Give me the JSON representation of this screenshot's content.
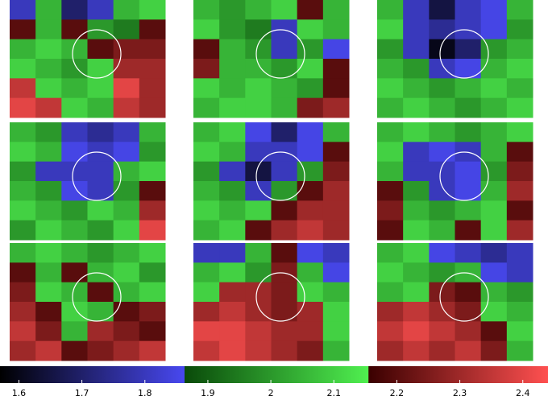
{
  "chart_data": {
    "type": "heatmap",
    "panels": [
      {
        "values": [
          [
            1.8,
            2.05,
            1.7,
            1.8,
            2.05,
            2.1
          ],
          [
            2.2,
            2.05,
            2.2,
            2.0,
            1.95,
            2.2
          ],
          [
            2.05,
            2.1,
            2.05,
            2.2,
            2.25,
            2.25
          ],
          [
            2.1,
            2.05,
            2.0,
            2.1,
            2.3,
            2.3
          ],
          [
            2.35,
            2.1,
            2.05,
            2.1,
            2.4,
            2.3
          ],
          [
            2.4,
            2.35,
            2.1,
            2.05,
            2.35,
            2.3
          ]
        ]
      },
      {
        "values": [
          [
            2.05,
            2.0,
            2.05,
            2.1,
            2.2,
            2.05
          ],
          [
            2.1,
            2.0,
            1.95,
            1.8,
            2.1,
            2.05
          ],
          [
            2.2,
            2.05,
            2.0,
            1.8,
            2.0,
            1.85
          ],
          [
            2.25,
            2.05,
            2.05,
            2.0,
            2.1,
            2.2
          ],
          [
            2.1,
            2.05,
            2.1,
            2.05,
            2.0,
            2.2
          ],
          [
            2.05,
            2.1,
            2.1,
            2.05,
            2.25,
            2.3
          ]
        ]
      },
      {
        "values": [
          [
            2.05,
            1.8,
            1.65,
            1.8,
            1.85,
            2.05
          ],
          [
            2.1,
            1.8,
            1.75,
            1.8,
            1.85,
            2.0
          ],
          [
            2.0,
            1.8,
            1.6,
            1.7,
            2.0,
            2.05
          ],
          [
            2.05,
            2.0,
            1.8,
            1.85,
            2.05,
            2.1
          ],
          [
            2.1,
            2.05,
            2.0,
            2.05,
            2.1,
            2.05
          ],
          [
            2.05,
            2.1,
            2.05,
            2.0,
            2.05,
            2.1
          ]
        ]
      },
      {
        "values": [
          [
            2.05,
            2.0,
            1.8,
            1.75,
            1.8,
            2.05
          ],
          [
            2.1,
            2.05,
            1.85,
            1.8,
            1.85,
            2.0
          ],
          [
            2.0,
            1.8,
            1.8,
            1.8,
            2.05,
            2.1
          ],
          [
            2.05,
            2.0,
            1.85,
            1.8,
            2.0,
            2.2
          ],
          [
            2.1,
            2.05,
            2.0,
            2.1,
            2.05,
            2.3
          ],
          [
            2.0,
            2.1,
            2.05,
            2.0,
            2.1,
            2.4
          ]
        ]
      },
      {
        "values": [
          [
            2.05,
            2.1,
            1.85,
            1.7,
            1.85,
            2.05
          ],
          [
            2.1,
            2.05,
            1.8,
            1.8,
            1.85,
            2.2
          ],
          [
            2.0,
            1.8,
            1.65,
            1.8,
            2.0,
            2.25
          ],
          [
            2.05,
            2.0,
            1.8,
            2.0,
            2.2,
            2.3
          ],
          [
            2.1,
            2.05,
            2.1,
            2.2,
            2.3,
            2.3
          ],
          [
            2.05,
            2.1,
            2.2,
            2.3,
            2.35,
            2.3
          ]
        ]
      },
      {
        "values": [
          [
            2.05,
            2.1,
            2.05,
            2.0,
            2.05,
            2.1
          ],
          [
            2.1,
            1.8,
            1.85,
            1.8,
            2.05,
            2.2
          ],
          [
            2.05,
            1.8,
            1.8,
            1.85,
            2.0,
            2.25
          ],
          [
            2.2,
            2.0,
            1.8,
            1.85,
            2.05,
            2.3
          ],
          [
            2.25,
            2.05,
            2.0,
            2.05,
            2.1,
            2.2
          ],
          [
            2.2,
            2.1,
            2.05,
            2.2,
            2.1,
            2.3
          ]
        ]
      },
      {
        "values": [
          [
            2.05,
            2.1,
            2.05,
            2.0,
            2.05,
            2.1
          ],
          [
            2.2,
            2.05,
            2.2,
            2.05,
            2.1,
            2.0
          ],
          [
            2.25,
            2.1,
            2.05,
            2.2,
            2.05,
            2.1
          ],
          [
            2.3,
            2.2,
            2.1,
            2.05,
            2.2,
            2.25
          ],
          [
            2.35,
            2.25,
            2.05,
            2.3,
            2.25,
            2.2
          ],
          [
            2.3,
            2.35,
            2.2,
            2.25,
            2.3,
            2.35
          ]
        ]
      },
      {
        "values": [
          [
            1.8,
            1.8,
            2.05,
            2.2,
            1.85,
            1.8
          ],
          [
            2.05,
            2.1,
            2.0,
            2.25,
            2.05,
            1.85
          ],
          [
            2.1,
            2.3,
            2.3,
            2.25,
            2.1,
            2.05
          ],
          [
            2.3,
            2.35,
            2.3,
            2.25,
            2.3,
            2.1
          ],
          [
            2.4,
            2.4,
            2.35,
            2.3,
            2.3,
            2.1
          ],
          [
            2.35,
            2.4,
            2.35,
            2.3,
            2.25,
            2.05
          ]
        ]
      },
      {
        "values": [
          [
            2.05,
            2.1,
            1.85,
            1.8,
            1.75,
            1.8
          ],
          [
            2.1,
            2.05,
            2.0,
            2.05,
            1.85,
            1.8
          ],
          [
            2.05,
            2.1,
            2.25,
            2.2,
            2.05,
            2.0
          ],
          [
            2.3,
            2.35,
            2.3,
            2.25,
            2.1,
            2.05
          ],
          [
            2.35,
            2.4,
            2.35,
            2.3,
            2.2,
            2.1
          ],
          [
            2.3,
            2.35,
            2.3,
            2.35,
            2.25,
            2.05
          ]
        ]
      }
    ],
    "colorbar": {
      "clim": [
        1.57,
        2.44
      ],
      "ticks": [
        1.6,
        1.7,
        1.8,
        1.9,
        2,
        2.1,
        2.2,
        2.3,
        2.4
      ],
      "segments": [
        {
          "range": [
            1.57,
            1.863
          ],
          "colors": [
            "#000000",
            "#4848f0"
          ]
        },
        {
          "range": [
            1.863,
            2.155
          ],
          "colors": [
            "#0a4a0a",
            "#50f050"
          ]
        },
        {
          "range": [
            2.155,
            2.44
          ],
          "colors": [
            "#3a0000",
            "#ff5050"
          ]
        }
      ]
    }
  }
}
